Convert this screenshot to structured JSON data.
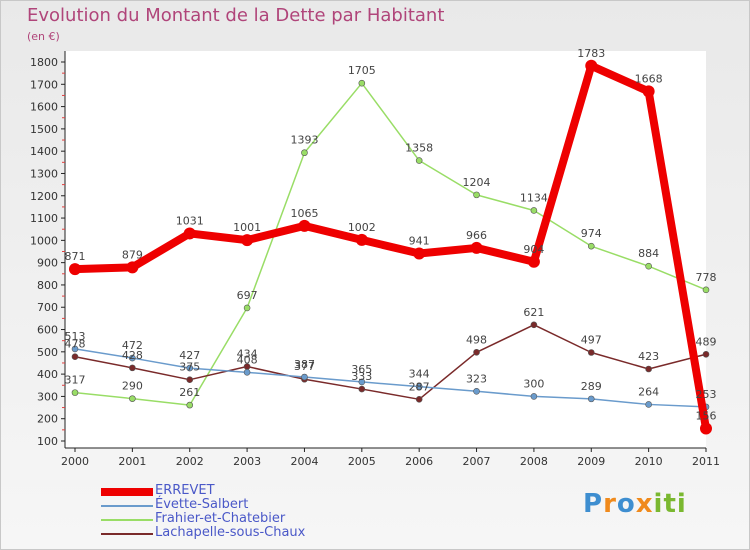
{
  "chart_data": {
    "type": "line",
    "title": "Evolution du Montant de la Dette par Habitant",
    "subtitle": "(en €)",
    "categories": [
      "2000",
      "2001",
      "2002",
      "2003",
      "2004",
      "2005",
      "2006",
      "2007",
      "2008",
      "2009",
      "2010",
      "2011"
    ],
    "ylim": [
      100,
      1800
    ],
    "yticks": [
      100,
      200,
      300,
      400,
      500,
      600,
      700,
      800,
      900,
      1000,
      1100,
      1200,
      1300,
      1400,
      1500,
      1600,
      1700,
      1800
    ],
    "grid": false,
    "legend_position": "bottom-left",
    "series": [
      {
        "name": "ERREVET",
        "color": "#ee0000",
        "values": [
          871,
          879,
          1031,
          1001,
          1065,
          1002,
          941,
          966,
          904,
          1783,
          1668,
          156
        ]
      },
      {
        "name": "Évette-Salbert",
        "color": "#6a9bcc",
        "values": [
          513,
          472,
          427,
          408,
          387,
          365,
          344,
          323,
          300,
          289,
          264,
          253
        ]
      },
      {
        "name": "Frahier-et-Chatebier",
        "color": "#99dd66",
        "values": [
          317,
          290,
          261,
          697,
          1393,
          1705,
          1358,
          1204,
          1134,
          974,
          884,
          778
        ]
      },
      {
        "name": "Lachapelle-sous-Chaux",
        "color": "#7a2a2a",
        "values": [
          478,
          428,
          375,
          434,
          377,
          333,
          287,
          498,
          621,
          497,
          423,
          489
        ]
      }
    ]
  },
  "logo": {
    "text": "Proxiti",
    "letters": [
      "P",
      "r",
      "o",
      "x",
      "i",
      "ti"
    ]
  }
}
